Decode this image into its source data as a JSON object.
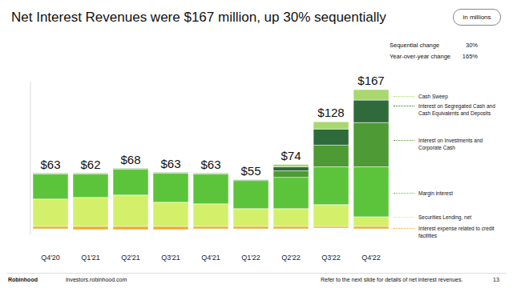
{
  "chart_data": {
    "type": "bar",
    "title": "Net Interest Revenues were $167 million, up 30% sequentially",
    "subtitle": "in millions",
    "stacked": true,
    "grid": false,
    "tick_labels": "x",
    "categories": [
      "Q4'20",
      "Q1'21",
      "Q2'21",
      "Q3'21",
      "Q4'21",
      "Q1'22",
      "Q2'22",
      "Q3'22",
      "Q4'22"
    ],
    "ylim": [
      -10,
      180
    ],
    "yticks": [],
    "series": [
      {
        "name": "Cash Sweep",
        "color": "#a9d86e",
        "values": [
          0,
          0,
          0,
          0,
          0,
          0,
          3,
          9,
          13
        ]
      },
      {
        "name": "Interest on Segregated Cash and Cash Equivalents and Deposits",
        "color": "#2f6b3a",
        "values": [
          0,
          0,
          0,
          0,
          0,
          0,
          5,
          20,
          28
        ]
      },
      {
        "name": "Interest on Investments and Corporate Cash",
        "color": "#4e9a34",
        "values": [
          1,
          1,
          1,
          1,
          1,
          1,
          8,
          27,
          55
        ]
      },
      {
        "name": "Margin interest",
        "color": "#5cc43a",
        "values": [
          31,
          29,
          32,
          36,
          37,
          35,
          39,
          47,
          62
        ]
      },
      {
        "name": "Securities Lending, net",
        "color": "#d4f06a",
        "values": [
          34,
          36,
          39,
          30,
          28,
          22,
          22,
          27,
          12
        ]
      },
      {
        "name": "Interest expense related to credit facilities",
        "color": "#f0a830",
        "values": [
          -3,
          -4,
          -4,
          -4,
          -3,
          -3,
          -3,
          -2,
          -3
        ]
      }
    ],
    "totals": {
      "values": [
        63,
        62,
        68,
        63,
        63,
        55,
        74,
        128,
        167
      ],
      "value_labels": [
        "$63",
        "$62",
        "$68",
        "$63",
        "$63",
        "$55",
        "$74",
        "$128",
        "$167"
      ]
    },
    "stats": [
      {
        "label": "Sequential change",
        "value": 30,
        "value_label": "30%"
      },
      {
        "label": "Year-over-year change",
        "value": 165,
        "value_label": "165%"
      }
    ],
    "footer": {
      "brand": "Robinhood",
      "url": "investors.robinhood.com",
      "note": "Refer to the next slide for details of net interest revenues.",
      "page": 13
    }
  }
}
